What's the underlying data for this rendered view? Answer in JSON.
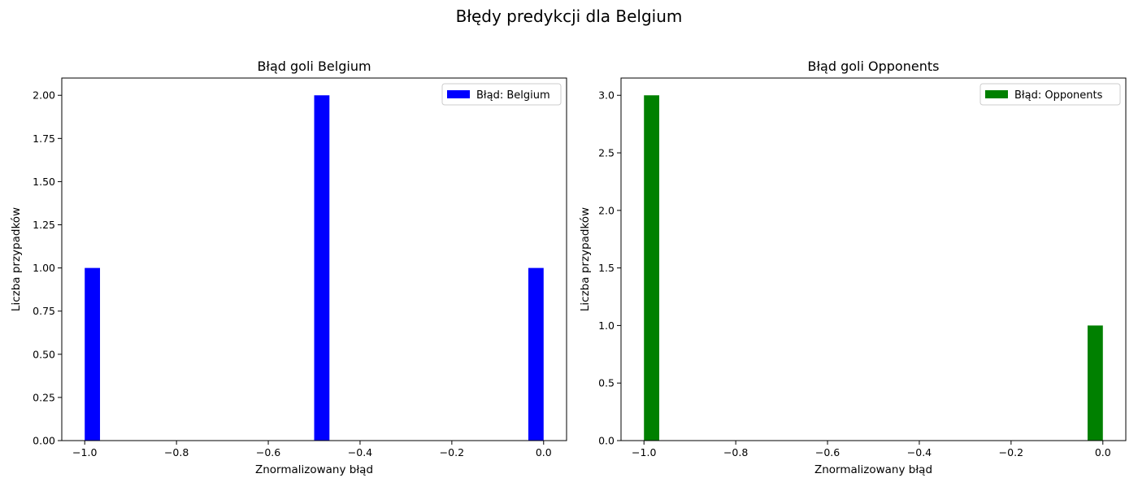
{
  "figure": {
    "suptitle": "Błędy predykcji dla Belgium"
  },
  "chart_data": [
    {
      "type": "bar",
      "title": "Błąd goli Belgium",
      "xlabel": "Znormalizowany błąd",
      "ylabel": "Liczba przypadków",
      "xlim": [
        -1.05,
        0.05
      ],
      "ylim": [
        0,
        2.1
      ],
      "xticks": [
        -1.0,
        -0.8,
        -0.6,
        -0.4,
        -0.2,
        0.0
      ],
      "xtick_labels": [
        "−1.0",
        "−0.8",
        "−0.6",
        "−0.4",
        "−0.2",
        "0.0"
      ],
      "yticks": [
        0.0,
        0.25,
        0.5,
        0.75,
        1.0,
        1.25,
        1.5,
        1.75,
        2.0
      ],
      "ytick_labels": [
        "0.00",
        "0.25",
        "0.50",
        "0.75",
        "1.00",
        "1.25",
        "1.50",
        "1.75",
        "2.00"
      ],
      "bin_width": 0.0333,
      "bars": [
        {
          "x": -1.0,
          "value": 1
        },
        {
          "x": -0.5,
          "value": 2
        },
        {
          "x": -0.0333,
          "value": 1
        }
      ],
      "series": [
        {
          "name": "Błąd: Belgium",
          "color": "#0000ff"
        }
      ],
      "legend_position": "top-right",
      "grid": false
    },
    {
      "type": "bar",
      "title": "Błąd goli Opponents",
      "xlabel": "Znormalizowany błąd",
      "ylabel": "Liczba przypadków",
      "xlim": [
        -1.05,
        0.05
      ],
      "ylim": [
        0,
        3.15
      ],
      "xticks": [
        -1.0,
        -0.8,
        -0.6,
        -0.4,
        -0.2,
        0.0
      ],
      "xtick_labels": [
        "−1.0",
        "−0.8",
        "−0.6",
        "−0.4",
        "−0.2",
        "0.0"
      ],
      "yticks": [
        0.0,
        0.5,
        1.0,
        1.5,
        2.0,
        2.5,
        3.0
      ],
      "ytick_labels": [
        "0.0",
        "0.5",
        "1.0",
        "1.5",
        "2.0",
        "2.5",
        "3.0"
      ],
      "bin_width": 0.0333,
      "bars": [
        {
          "x": -1.0,
          "value": 3
        },
        {
          "x": -0.0333,
          "value": 1
        }
      ],
      "series": [
        {
          "name": "Błąd: Opponents",
          "color": "#008000"
        }
      ],
      "legend_position": "top-right",
      "grid": false
    }
  ]
}
